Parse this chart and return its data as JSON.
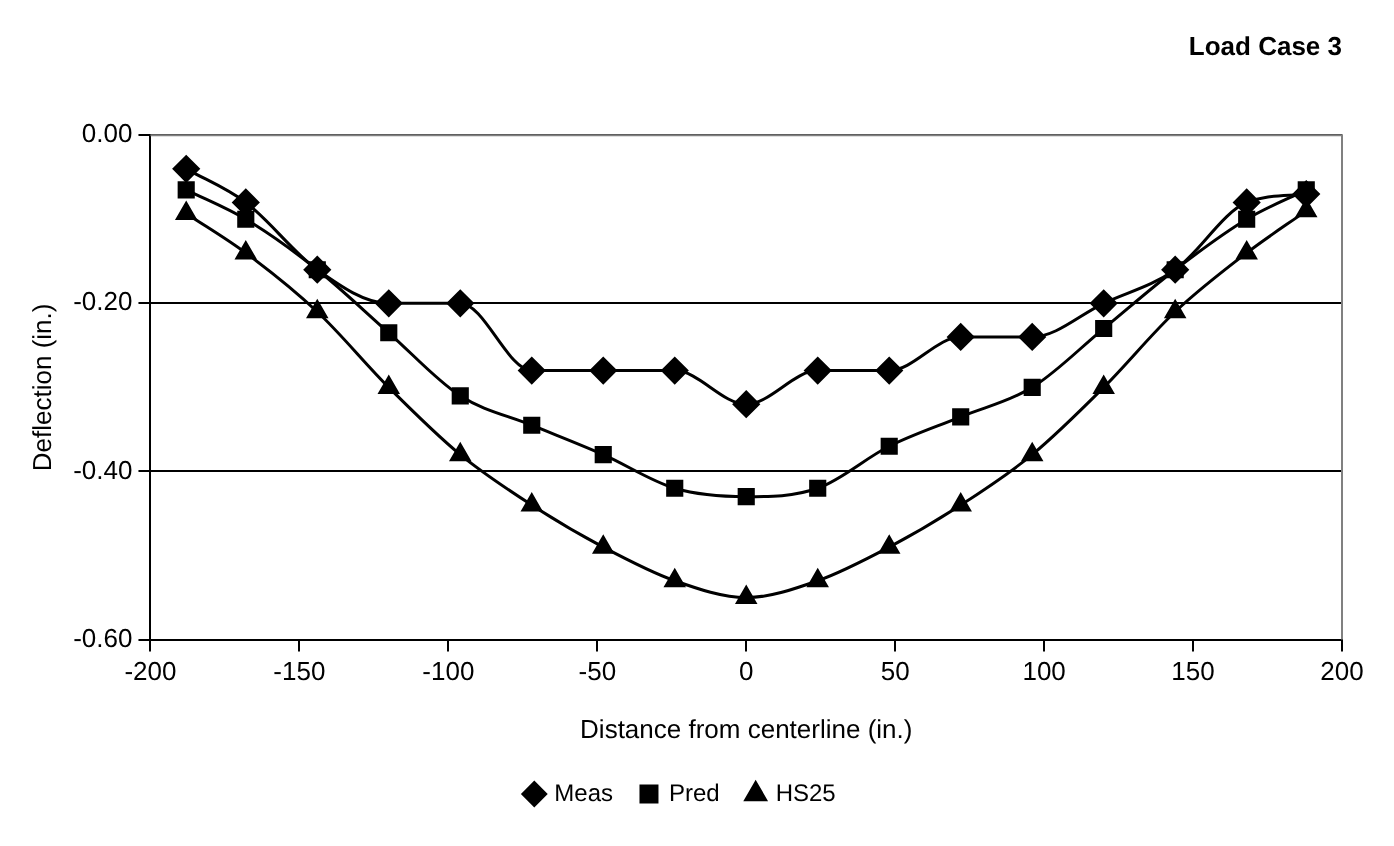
{
  "chart_data": {
    "type": "line",
    "title": "Load Case 3",
    "xlabel": "Distance from centerline (in.)",
    "ylabel": "Deflection (in.)",
    "x": [
      -188,
      -168,
      -144,
      -120,
      -96,
      -72,
      -48,
      -24,
      0,
      24,
      48,
      72,
      96,
      120,
      144,
      168,
      188
    ],
    "series": [
      {
        "name": "Meas",
        "color": "#000000",
        "marker": "diamond",
        "values": [
          -0.04,
          -0.08,
          -0.16,
          -0.2,
          -0.2,
          -0.28,
          -0.28,
          -0.28,
          -0.32,
          -0.28,
          -0.28,
          -0.24,
          -0.24,
          -0.2,
          -0.16,
          -0.08,
          -0.07
        ]
      },
      {
        "name": "Pred",
        "color": "#000000",
        "marker": "square",
        "values": [
          -0.065,
          -0.1,
          -0.16,
          -0.235,
          -0.31,
          -0.345,
          -0.38,
          -0.42,
          -0.43,
          -0.42,
          -0.37,
          -0.335,
          -0.3,
          -0.23,
          -0.16,
          -0.1,
          -0.065
        ]
      },
      {
        "name": "HS25",
        "color": "#000000",
        "marker": "triangle",
        "values": [
          -0.093,
          -0.14,
          -0.21,
          -0.3,
          -0.38,
          -0.44,
          -0.49,
          -0.53,
          -0.55,
          -0.53,
          -0.49,
          -0.44,
          -0.38,
          -0.3,
          -0.21,
          -0.14,
          -0.09
        ]
      }
    ],
    "xlim": [
      -200,
      200
    ],
    "xticks": [
      -200,
      -150,
      -100,
      -50,
      0,
      50,
      100,
      150,
      200
    ],
    "ylim": [
      -0.6,
      0
    ],
    "yticks": [
      {
        "value": 0,
        "label": "0.00"
      },
      {
        "value": -0.2,
        "label": "-0.20"
      },
      {
        "value": -0.4,
        "label": "-0.40"
      },
      {
        "value": -0.6,
        "label": "-0.60"
      }
    ],
    "grid": "y",
    "legend": "bottom",
    "line_style": "solid"
  }
}
